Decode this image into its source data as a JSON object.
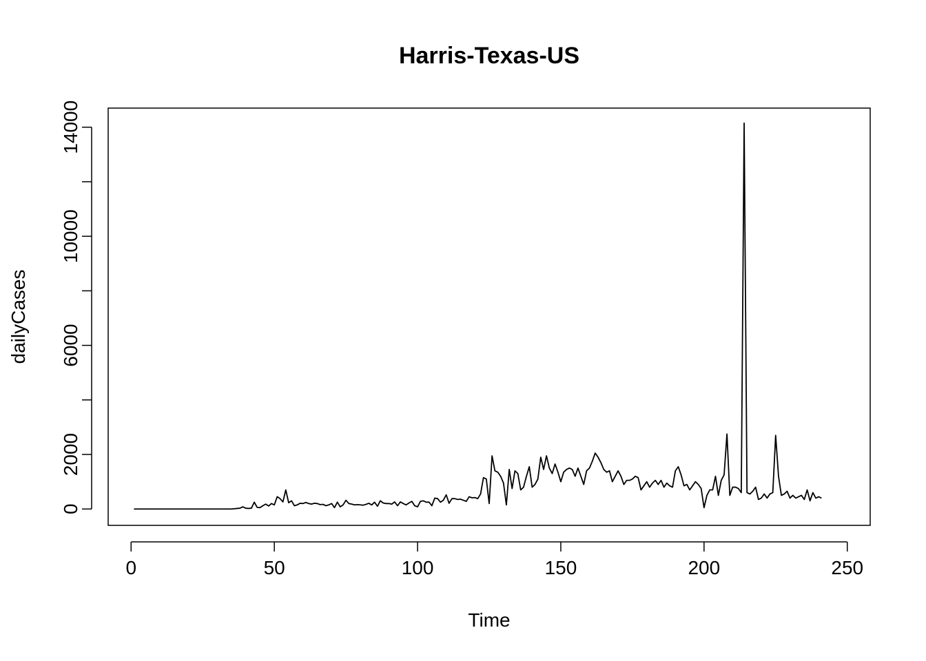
{
  "chart_data": {
    "type": "line",
    "title": "Harris-Texas-US",
    "xlabel": "Time",
    "ylabel": "dailyCases",
    "xlim": [
      -8,
      258
    ],
    "ylim": [
      -600,
      14700
    ],
    "x_ticks": [
      0,
      50,
      100,
      150,
      200,
      250
    ],
    "x_tick_labels": [
      "0",
      "50",
      "100",
      "150",
      "200",
      "250"
    ],
    "y_ticks": [
      0,
      2000,
      4000,
      6000,
      8000,
      10000,
      12000,
      14000
    ],
    "y_tick_labels": [
      "0",
      "2000",
      "",
      "6000",
      "",
      "10000",
      "",
      "14000"
    ],
    "grid": false,
    "series": [
      {
        "x_start": 1,
        "x_step": 1,
        "color": "#000000",
        "values": [
          0,
          0,
          0,
          0,
          0,
          0,
          0,
          0,
          0,
          0,
          0,
          0,
          0,
          0,
          0,
          0,
          0,
          0,
          0,
          0,
          0,
          0,
          0,
          0,
          0,
          0,
          0,
          0,
          0,
          0,
          0,
          0,
          0,
          0,
          0,
          10,
          20,
          30,
          80,
          30,
          20,
          30,
          250,
          60,
          50,
          120,
          180,
          110,
          200,
          150,
          450,
          380,
          260,
          700,
          230,
          300,
          120,
          150,
          210,
          200,
          240,
          200,
          180,
          210,
          200,
          160,
          170,
          120,
          150,
          200,
          50,
          250,
          80,
          150,
          320,
          200,
          180,
          150,
          160,
          150,
          140,
          170,
          210,
          150,
          250,
          100,
          300,
          220,
          200,
          200,
          180,
          260,
          120,
          260,
          200,
          150,
          220,
          280,
          120,
          80,
          280,
          300,
          250,
          250,
          120,
          400,
          380,
          250,
          320,
          520,
          210,
          380,
          380,
          350,
          360,
          320,
          280,
          450,
          410,
          420,
          380,
          550,
          1150,
          1100,
          200,
          1950,
          1400,
          1350,
          1200,
          950,
          150,
          1450,
          750,
          1400,
          1300,
          700,
          800,
          1200,
          1550,
          800,
          900,
          1100,
          1900,
          1450,
          1950,
          1500,
          1300,
          1650,
          1350,
          1000,
          1350,
          1450,
          1500,
          1450,
          1200,
          1500,
          1200,
          900,
          1400,
          1500,
          1750,
          2050,
          1900,
          1700,
          1450,
          1350,
          1400,
          1000,
          1200,
          1400,
          1200,
          900,
          1050,
          1050,
          1100,
          1200,
          1150,
          700,
          850,
          1000,
          800,
          950,
          1050,
          900,
          1050,
          800,
          950,
          850,
          800,
          1400,
          1550,
          1250,
          850,
          900,
          700,
          850,
          1000,
          900,
          750,
          50,
          500,
          700,
          700,
          1200,
          500,
          1050,
          1250,
          2750,
          500,
          800,
          800,
          750,
          600,
          14150,
          600,
          550,
          650,
          800,
          350,
          400,
          550,
          400,
          550,
          600,
          2700,
          1200,
          500,
          550,
          650,
          400,
          500,
          400,
          450,
          500,
          350,
          700,
          300,
          600,
          400,
          450,
          400
        ]
      }
    ]
  }
}
